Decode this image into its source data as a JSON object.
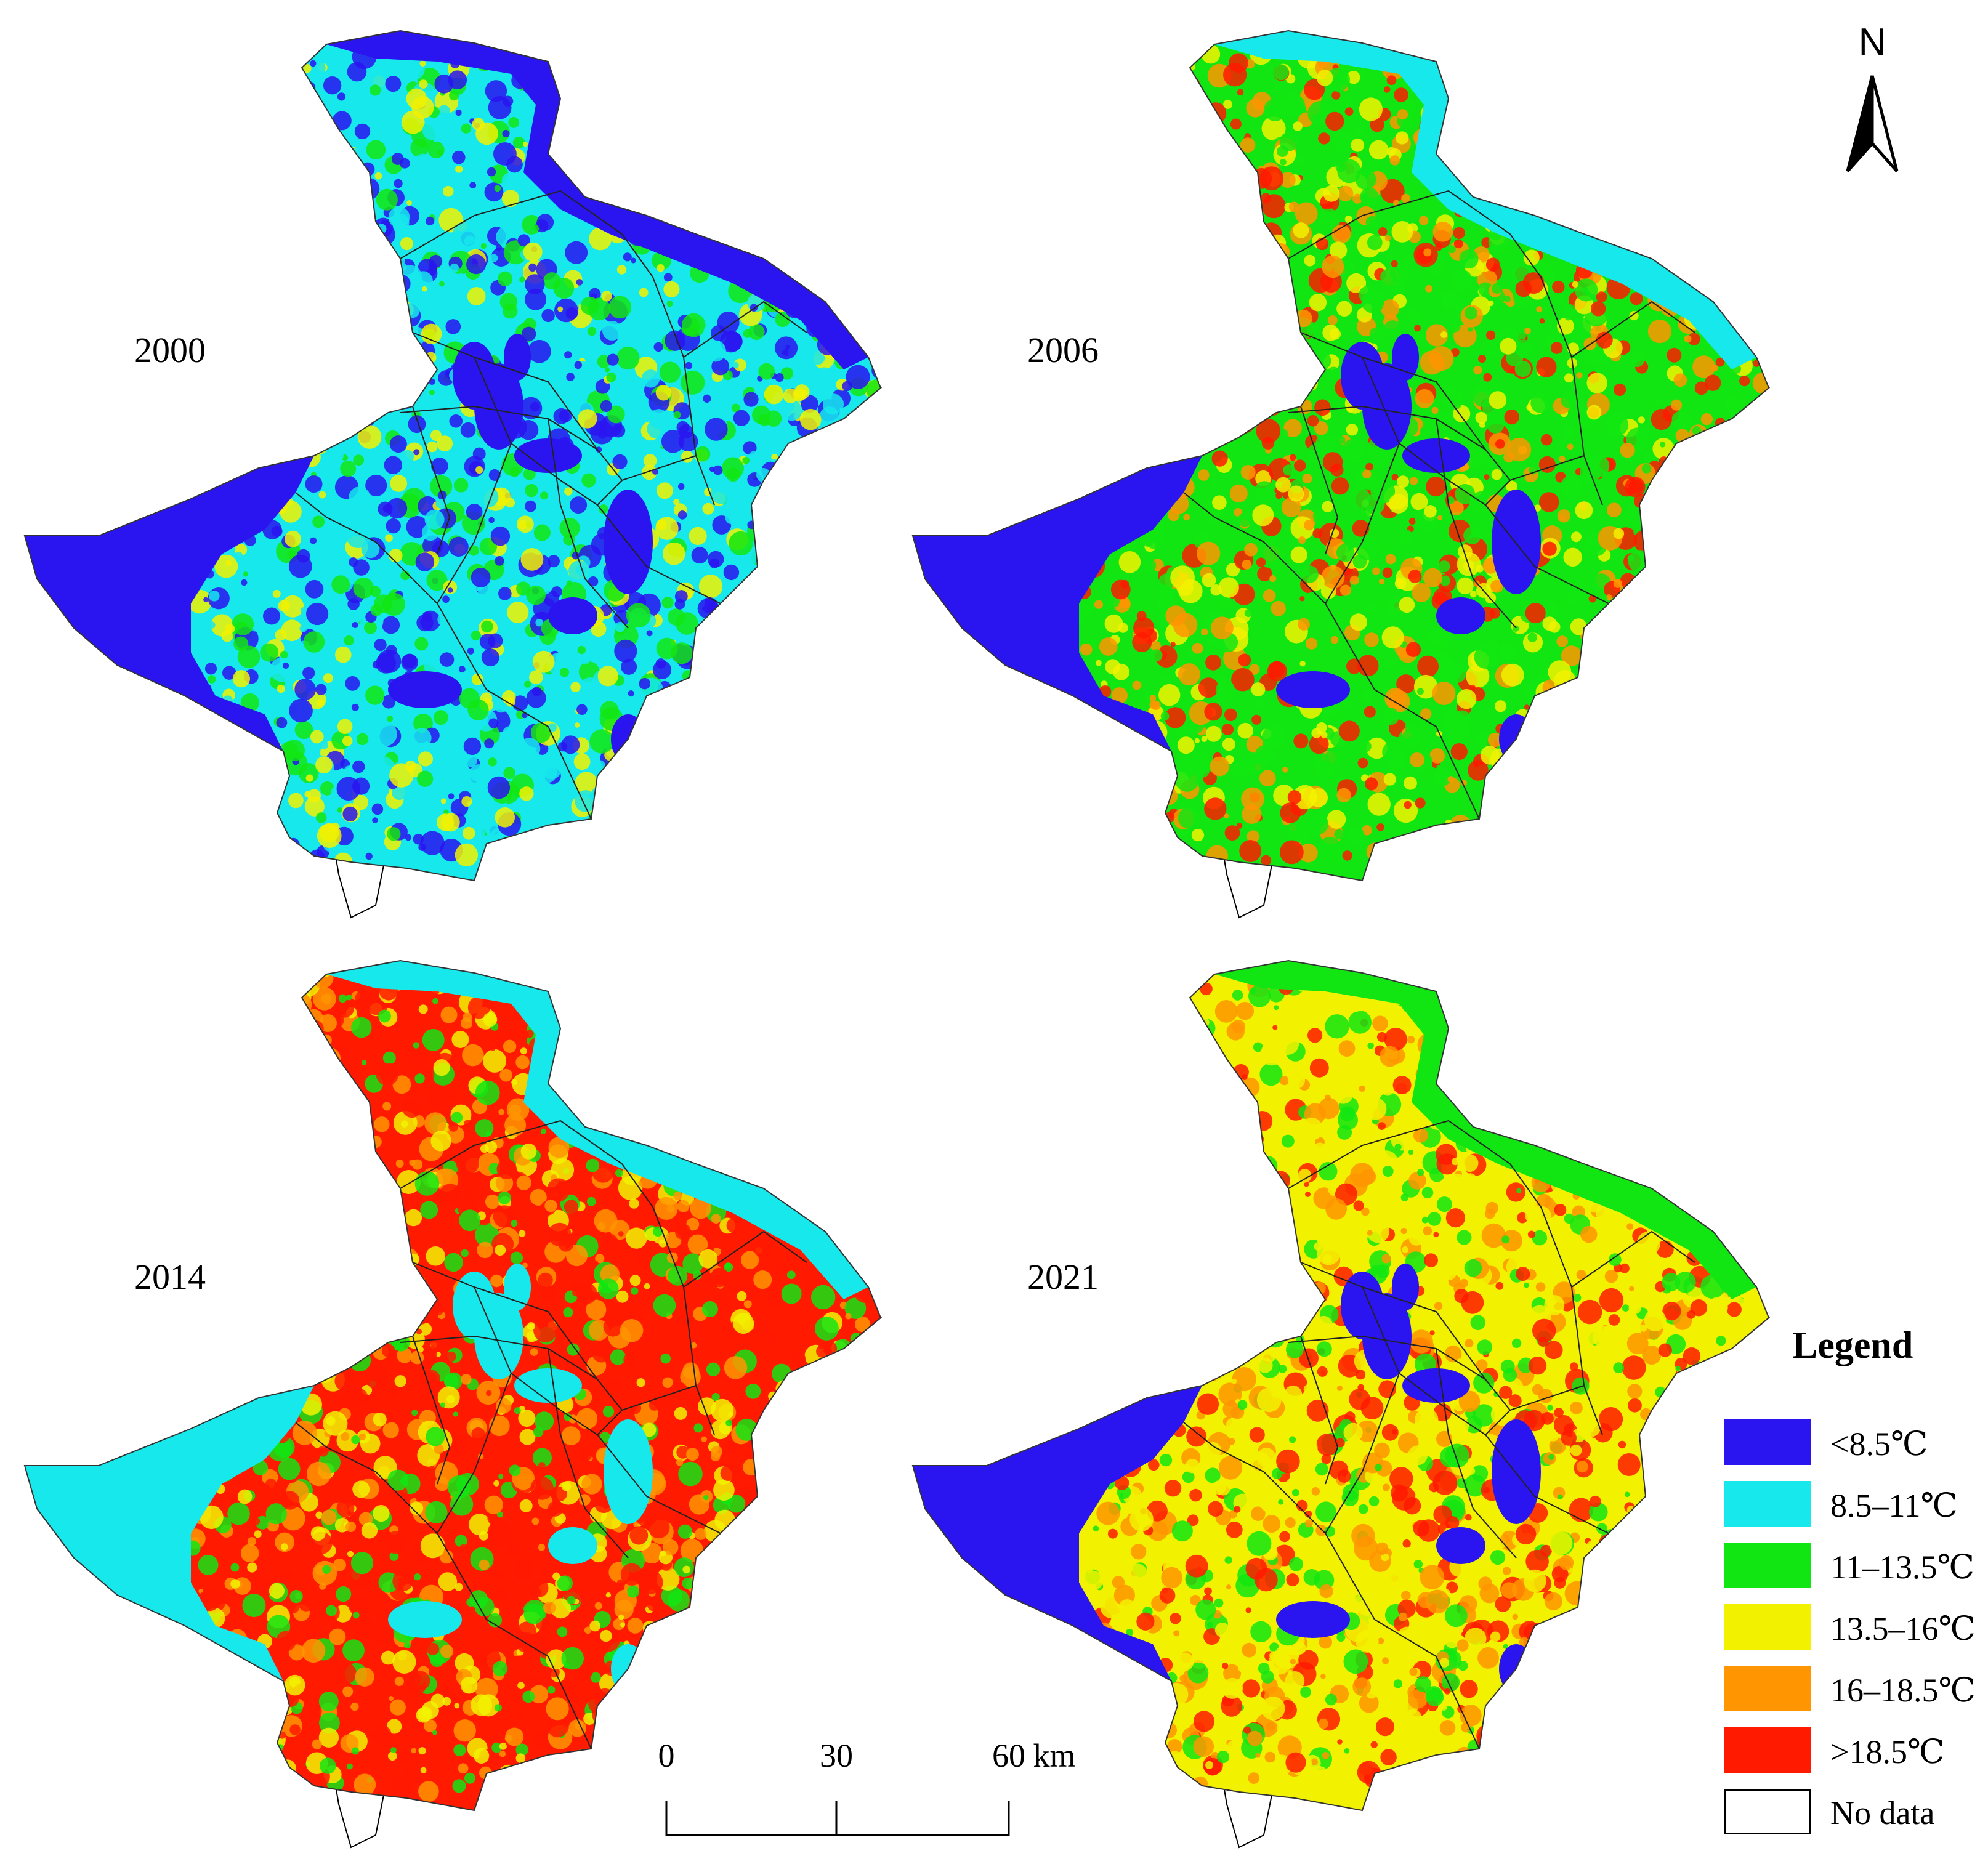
{
  "panels": [
    {
      "year": "2000",
      "palette": [
        "#2a14f0",
        "#16e8ec",
        "#12e612",
        "#f2f200"
      ],
      "water": "#2a14f0",
      "river": "#2a14f0",
      "upland": "#16e8ec"
    },
    {
      "year": "2006",
      "palette": [
        "#12e612",
        "#ff1a00",
        "#f2f200",
        "#ff9500"
      ],
      "water": "#2a14f0",
      "river": "#16e8ec",
      "upland": "#12e612"
    },
    {
      "year": "2014",
      "palette": [
        "#ff1a00",
        "#ff9500",
        "#f2f200",
        "#12e612"
      ],
      "water": "#16e8ec",
      "river": "#16e8ec",
      "upland": "#ff1a00"
    },
    {
      "year": "2021",
      "palette": [
        "#f2f200",
        "#ff9500",
        "#ff1a00",
        "#12e612"
      ],
      "water": "#2a14f0",
      "river": "#12e612",
      "upland": "#f2f200"
    }
  ],
  "north_arrow": {
    "label": "N"
  },
  "scale_bar": {
    "ticks": [
      "0",
      "30",
      "60"
    ],
    "unit": "km"
  },
  "legend": {
    "title": "Legend",
    "items": [
      {
        "label": "<8.5℃",
        "color": "#2a14f0"
      },
      {
        "label": "8.5–11℃",
        "color": "#16e8ec"
      },
      {
        "label": "11–13.5℃",
        "color": "#12e612"
      },
      {
        "label": "13.5–16℃",
        "color": "#f2f200"
      },
      {
        "label": "16–18.5℃",
        "color": "#ff9500"
      },
      {
        "label": ">18.5℃",
        "color": "#ff1a00"
      },
      {
        "label": "No data",
        "color": "#ffffff"
      }
    ]
  }
}
